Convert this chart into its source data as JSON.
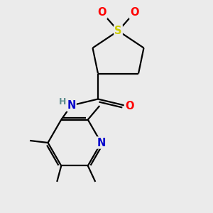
{
  "background_color": "#ebebeb",
  "bond_color": "#000000",
  "atom_colors": {
    "S": "#cccc00",
    "O": "#ff0000",
    "N": "#0000cc",
    "C": "#000000",
    "H": "#5f8f8f"
  },
  "figsize": [
    3.0,
    3.0
  ],
  "dpi": 100,
  "lw": 1.6,
  "fs": 9.5
}
